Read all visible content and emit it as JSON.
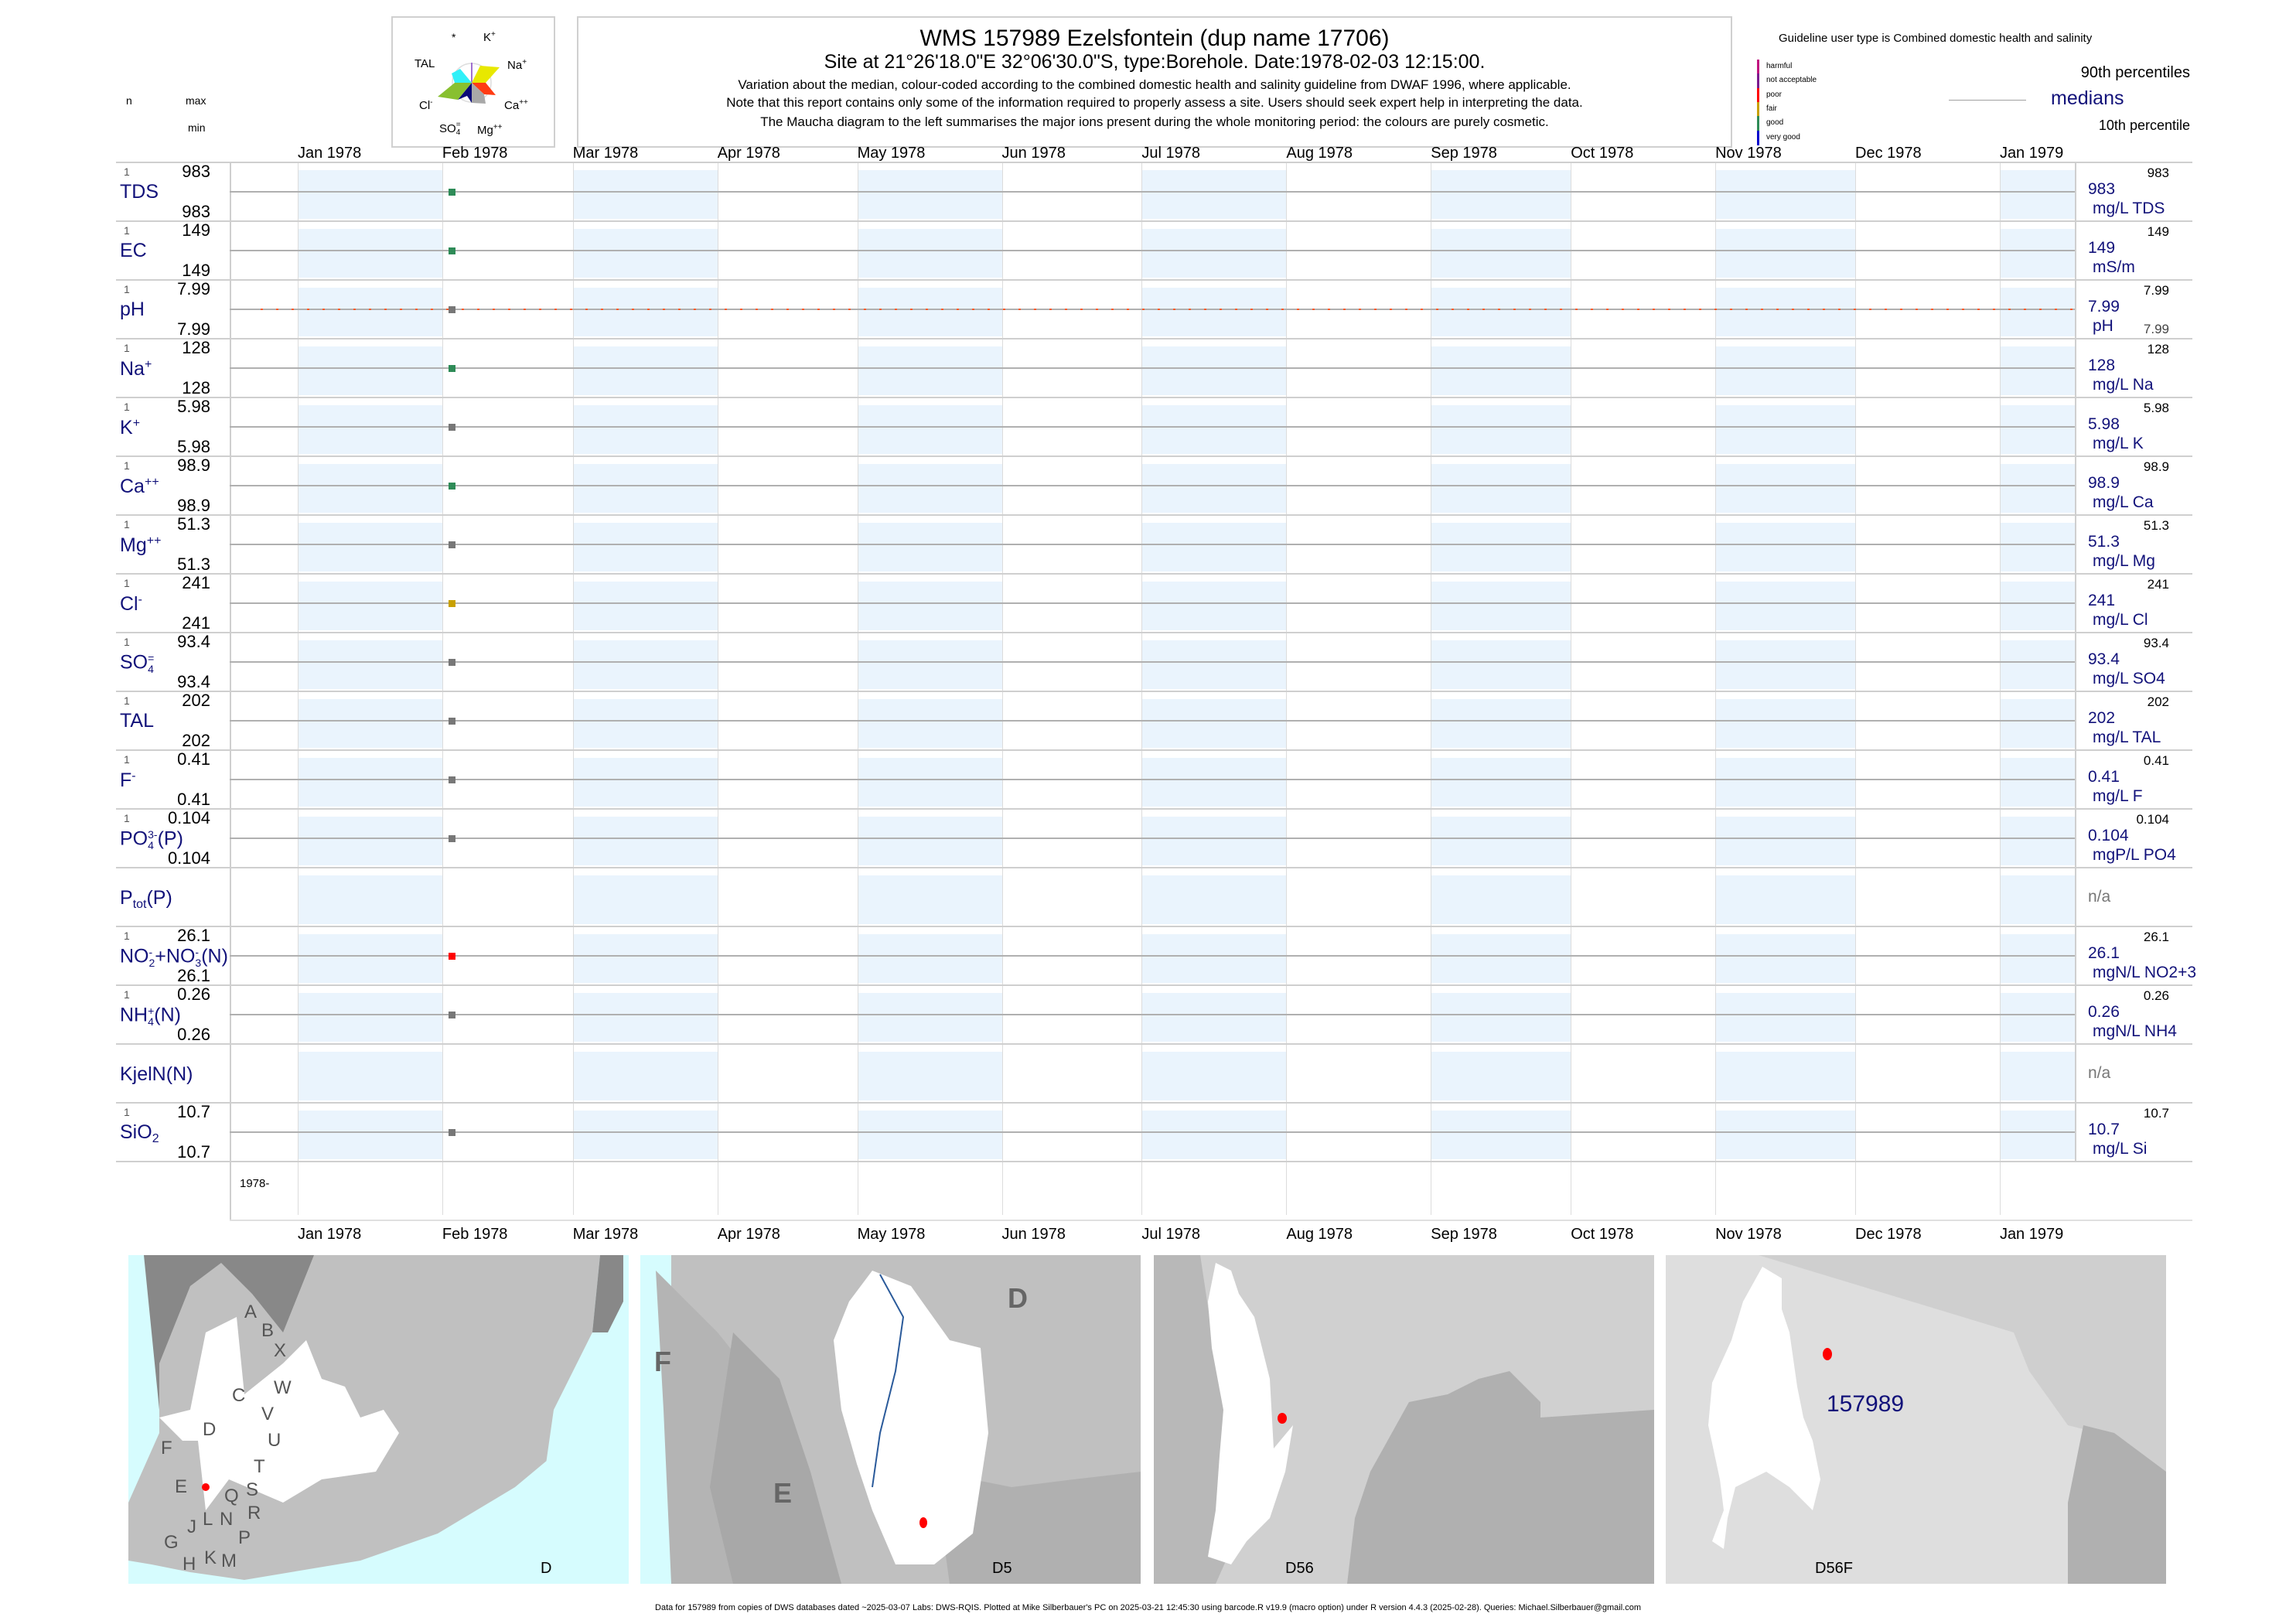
{
  "header": {
    "title": "WMS 157989  Ezelsfontein (dup name 17706)",
    "subtitle": "Site at 21°26'18.0\"E 32°06'30.0\"S, type:Borehole. Date:1978-02-03 12:15:00.",
    "notes": [
      "Variation about the median,  colour-coded according to the combined domestic health and salinity guideline from DWAF 1996, where applicable.",
      "Note that this report contains only some of the information required to properly assess a site. Users should seek expert help in interpreting the data.",
      "The Maucha diagram to the left summarises the major ions present during the whole monitoring period: the colours are purely cosmetic."
    ]
  },
  "maucha": {
    "labels": {
      "star": "*",
      "k": "K",
      "k_sup": "+",
      "tal": "TAL",
      "na": "Na",
      "na_sup": "+",
      "cl": "Cl",
      "cl_sup": "-",
      "ca": "Ca",
      "ca_sup": "++",
      "so4": "SO",
      "so4_sub": "4",
      "so4_sup": "=",
      "mg": "Mg",
      "mg_sup": "++"
    },
    "colors": {
      "k": "#a070d0",
      "na": "#e8e800",
      "ca": "#ff3c14",
      "mg": "#a8a8a8",
      "so4": "#0a0a78",
      "cl": "#88c030",
      "tal": "#30f0f8"
    }
  },
  "columns": {
    "n": "n",
    "max": "max",
    "min": "min"
  },
  "legend": {
    "guideline": "Guideline user type is Combined domestic health and salinity",
    "classes": [
      {
        "label": "harmful",
        "color": "#c0127f"
      },
      {
        "label": "not acceptable",
        "color": "#7b1a8e"
      },
      {
        "label": "poor",
        "color": "#ff0000"
      },
      {
        "label": "fair",
        "color": "#c8a000"
      },
      {
        "label": "good",
        "color": "#2e8b57"
      },
      {
        "label": "very good",
        "color": "#0000cc"
      }
    ],
    "p90": "90th percentiles",
    "medians": "medians",
    "p10": "10th percentile"
  },
  "chart_data": {
    "type": "scatter",
    "x_type": "date",
    "xlim": [
      "1977-12-17",
      "1979-01-15"
    ],
    "month_ticks": [
      "Jan 1978",
      "Feb 1978",
      "Mar 1978",
      "Apr 1978",
      "May 1978",
      "Jun 1978",
      "Jul 1978",
      "Aug 1978",
      "Sep 1978",
      "Oct 1978",
      "Nov 1978",
      "Dec 1978",
      "Jan 1979"
    ],
    "year_label": "1978-",
    "sample_date": "1978-02-03",
    "rows": [
      {
        "id": "tds",
        "label": [
          {
            "t": "TDS"
          }
        ],
        "n": "1",
        "max": "983",
        "min": "983",
        "median": "983",
        "unit": "mg/L TDS",
        "rmax": "983",
        "value": 983,
        "color": "#2e8b57"
      },
      {
        "id": "ec",
        "label": [
          {
            "t": "EC"
          }
        ],
        "n": "1",
        "max": "149",
        "min": "149",
        "median": "149",
        "unit": "mS/m",
        "rmax": "149",
        "value": 149,
        "color": "#2e8b57"
      },
      {
        "id": "ph",
        "label": [
          {
            "t": "pH"
          }
        ],
        "n": "1",
        "max": "7.99",
        "min": "7.99",
        "median": "7.99",
        "unit": "pH",
        "rmax": "7.99",
        "rmin": "7.99",
        "value": 7.99,
        "color": "#777777",
        "guide_color": "#ff5a2a"
      },
      {
        "id": "na",
        "label": [
          {
            "t": "Na"
          },
          {
            "t": "+",
            "v": "sup"
          }
        ],
        "n": "1",
        "max": "128",
        "min": "128",
        "median": "128",
        "unit": "mg/L Na",
        "rmax": "128",
        "value": 128,
        "color": "#2e8b57"
      },
      {
        "id": "k",
        "label": [
          {
            "t": "K"
          },
          {
            "t": "+",
            "v": "sup"
          }
        ],
        "n": "1",
        "max": "5.98",
        "min": "5.98",
        "median": "5.98",
        "unit": "mg/L K",
        "rmax": "5.98",
        "value": 5.98,
        "color": "#777777"
      },
      {
        "id": "ca",
        "label": [
          {
            "t": "Ca"
          },
          {
            "t": "++",
            "v": "sup"
          }
        ],
        "n": "1",
        "max": "98.9",
        "min": "98.9",
        "median": "98.9",
        "unit": "mg/L Ca",
        "rmax": "98.9",
        "value": 98.9,
        "color": "#2e8b57"
      },
      {
        "id": "mg",
        "label": [
          {
            "t": "Mg"
          },
          {
            "t": "++",
            "v": "sup"
          }
        ],
        "n": "1",
        "max": "51.3",
        "min": "51.3",
        "median": "51.3",
        "unit": "mg/L Mg",
        "rmax": "51.3",
        "value": 51.3,
        "color": "#777777"
      },
      {
        "id": "cl",
        "label": [
          {
            "t": "Cl"
          },
          {
            "t": "-",
            "v": "sup"
          }
        ],
        "n": "1",
        "max": "241",
        "min": "241",
        "median": "241",
        "unit": "mg/L Cl",
        "rmax": "241",
        "value": 241,
        "color": "#c8a000"
      },
      {
        "id": "so4",
        "label": [
          {
            "t": "SO"
          },
          {
            "t": "=",
            "v": "sup2"
          },
          {
            "t": "4",
            "v": "sub"
          }
        ],
        "n": "1",
        "max": "93.4",
        "min": "93.4",
        "median": "93.4",
        "unit": "mg/L SO4",
        "rmax": "93.4",
        "value": 93.4,
        "color": "#777777"
      },
      {
        "id": "tal",
        "label": [
          {
            "t": "TAL"
          }
        ],
        "n": "1",
        "max": "202",
        "min": "202",
        "median": "202",
        "unit": "mg/L TAL",
        "rmax": "202",
        "value": 202,
        "color": "#777777"
      },
      {
        "id": "f",
        "label": [
          {
            "t": "F"
          },
          {
            "t": "-",
            "v": "sup"
          }
        ],
        "n": "1",
        "max": "0.41",
        "min": "0.41",
        "median": "0.41",
        "unit": "mg/L F",
        "rmax": "0.41",
        "value": 0.41,
        "color": "#777777"
      },
      {
        "id": "po4",
        "label": [
          {
            "t": "PO"
          },
          {
            "t": "3-",
            "v": "sup2"
          },
          {
            "t": "4",
            "v": "sub"
          },
          {
            "t": "(P)"
          }
        ],
        "n": "1",
        "max": "0.104",
        "min": "0.104",
        "median": "0.104",
        "unit": "mgP/L PO4",
        "rmax": "0.104",
        "value": 0.104,
        "color": "#777777"
      },
      {
        "id": "ptot",
        "label": [
          {
            "t": "P"
          },
          {
            "t": "tot",
            "v": "sub"
          },
          {
            "t": "(P)"
          }
        ],
        "na": "n/a"
      },
      {
        "id": "no23",
        "label": [
          {
            "t": "NO"
          },
          {
            "t": "-",
            "v": "sup2"
          },
          {
            "t": "2",
            "v": "sub"
          },
          {
            "t": "+NO"
          },
          {
            "t": "-",
            "v": "sup2"
          },
          {
            "t": "3",
            "v": "sub"
          },
          {
            "t": "(N)"
          }
        ],
        "n": "1",
        "max": "26.1",
        "min": "26.1",
        "median": "26.1",
        "unit": "mgN/L NO2+3",
        "rmax": "26.1",
        "value": 26.1,
        "color": "#ff0000"
      },
      {
        "id": "nh4",
        "label": [
          {
            "t": "NH"
          },
          {
            "t": "+",
            "v": "sup2"
          },
          {
            "t": "4",
            "v": "sub"
          },
          {
            "t": "(N)"
          }
        ],
        "n": "1",
        "max": "0.26",
        "min": "0.26",
        "median": "0.26",
        "unit": "mgN/L NH4",
        "rmax": "0.26",
        "value": 0.26,
        "color": "#777777"
      },
      {
        "id": "kjeln",
        "label": [
          {
            "t": "KjelN(N)"
          }
        ],
        "na": "n/a"
      },
      {
        "id": "sio2",
        "label": [
          {
            "t": "SiO"
          },
          {
            "t": "2",
            "v": "sub"
          }
        ],
        "n": "1",
        "max": "10.7",
        "min": "10.7",
        "median": "10.7",
        "unit": "mg/L Si",
        "rmax": "10.7",
        "value": 10.7,
        "color": "#777777"
      }
    ]
  },
  "maps": [
    {
      "caption": "D",
      "letters": [
        "A",
        "B",
        "X",
        "W",
        "C",
        "V",
        "D",
        "U",
        "F",
        "T",
        "E",
        "S",
        "Q",
        "N",
        "L",
        "R",
        "G",
        "J",
        "P",
        "H",
        "K",
        "M"
      ]
    },
    {
      "caption": "D5",
      "letters": [
        "D",
        "F",
        "E"
      ]
    },
    {
      "caption": "D56"
    },
    {
      "caption": "D56F",
      "site_label": "157989"
    }
  ],
  "footer": "Data for 157989 from copies of DWS databases dated ~2025-03-07 Labs: DWS-RQIS. Plotted at Mike Silberbauer's PC on 2025-03-21 12:45:30 using barcode.R v19.9 (macro option) under R version 4.4.3 (2025-02-28). Queries: Michael.Silberbauer@gmail.com"
}
